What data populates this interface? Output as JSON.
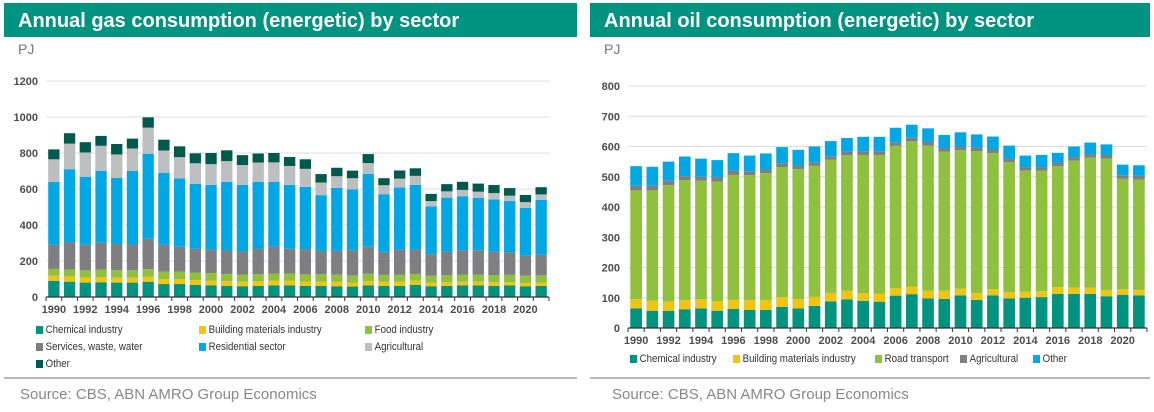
{
  "colors": {
    "title_bg": "#00937f",
    "chemical": "#00937f",
    "building": "#f1c40f",
    "food": "#8fc13e",
    "services": "#7f7f82",
    "residential": "#00a7e5",
    "agricultural": "#bdbec0",
    "other_gas": "#005a4b",
    "road": "#8fc13e",
    "agricultural_oil": "#7f7f82",
    "other_oil": "#00a7e5"
  },
  "chart_data": [
    {
      "type": "bar",
      "stacked": true,
      "title": "Annual gas consumption (energetic) by sector",
      "ylabel": "PJ",
      "xlabel": "",
      "ylim": [
        0,
        1200
      ],
      "yticks": [
        0,
        200,
        400,
        600,
        800,
        1000,
        1200
      ],
      "grid": true,
      "legend_position": "bottom",
      "x": [
        1990,
        1991,
        1992,
        1993,
        1994,
        1995,
        1996,
        1997,
        1998,
        1999,
        2000,
        2001,
        2002,
        2003,
        2004,
        2005,
        2006,
        2007,
        2008,
        2009,
        2010,
        2011,
        2012,
        2013,
        2014,
        2015,
        2016,
        2017,
        2018,
        2019,
        2020,
        2021
      ],
      "xtick_labels": [
        "1990",
        "1992",
        "1994",
        "1996",
        "1998",
        "2000",
        "2002",
        "2004",
        "2006",
        "2008",
        "2010",
        "2012",
        "2014",
        "2016",
        "2018",
        "2020"
      ],
      "series": [
        {
          "name": "Chemical industry",
          "color_key": "chemical",
          "values": [
            90,
            85,
            80,
            82,
            80,
            80,
            85,
            72,
            72,
            68,
            65,
            62,
            60,
            62,
            65,
            65,
            62,
            62,
            60,
            58,
            65,
            62,
            62,
            68,
            60,
            62,
            65,
            65,
            62,
            65,
            60,
            62
          ]
        },
        {
          "name": "Building materials industry",
          "color_key": "building",
          "values": [
            28,
            28,
            28,
            28,
            27,
            27,
            27,
            27,
            27,
            26,
            26,
            26,
            25,
            25,
            25,
            25,
            24,
            24,
            24,
            22,
            24,
            23,
            23,
            22,
            20,
            20,
            20,
            20,
            20,
            18,
            18,
            18
          ]
        },
        {
          "name": "Food industry",
          "color_key": "food",
          "values": [
            38,
            40,
            40,
            42,
            42,
            42,
            42,
            42,
            42,
            42,
            42,
            40,
            40,
            40,
            40,
            40,
            40,
            40,
            40,
            40,
            40,
            38,
            38,
            38,
            38,
            40,
            40,
            40,
            40,
            40,
            40,
            40
          ]
        },
        {
          "name": "Services, waste, water",
          "color_key": "services",
          "values": [
            134,
            152,
            142,
            150,
            145,
            143,
            170,
            150,
            138,
            132,
            130,
            130,
            128,
            140,
            150,
            138,
            140,
            130,
            132,
            140,
            150,
            128,
            140,
            135,
            120,
            130,
            135,
            135,
            130,
            125,
            112,
            115
          ]
        },
        {
          "name": "Residential sector",
          "color_key": "residential",
          "values": [
            350,
            405,
            378,
            398,
            368,
            408,
            472,
            398,
            380,
            360,
            360,
            382,
            370,
            372,
            360,
            355,
            346,
            310,
            350,
            338,
            405,
            320,
            345,
            360,
            265,
            300,
            300,
            290,
            290,
            285,
            265,
            305
          ]
        },
        {
          "name": "Agricultural",
          "color_key": "agricultural",
          "values": [
            125,
            142,
            135,
            140,
            130,
            125,
            145,
            125,
            118,
            115,
            115,
            115,
            110,
            108,
            108,
            105,
            100,
            70,
            65,
            62,
            60,
            50,
            50,
            50,
            30,
            35,
            35,
            35,
            35,
            30,
            32,
            30
          ]
        },
        {
          "name": "Other",
          "color_key": "other_gas",
          "values": [
            55,
            58,
            57,
            55,
            58,
            55,
            57,
            60,
            60,
            55,
            62,
            60,
            55,
            50,
            52,
            50,
            53,
            47,
            47,
            42,
            50,
            39,
            45,
            42,
            40,
            40,
            45,
            45,
            45,
            42,
            40,
            40
          ]
        }
      ]
    },
    {
      "type": "bar",
      "stacked": true,
      "title": "Annual oil consumption (energetic) by sector",
      "ylabel": "PJ",
      "xlabel": "",
      "ylim": [
        0,
        800
      ],
      "yticks": [
        0,
        100,
        200,
        300,
        400,
        500,
        600,
        700,
        800
      ],
      "grid": true,
      "legend_position": "bottom",
      "x": [
        1990,
        1991,
        1992,
        1993,
        1994,
        1995,
        1996,
        1997,
        1998,
        1999,
        2000,
        2001,
        2002,
        2003,
        2004,
        2005,
        2006,
        2007,
        2008,
        2009,
        2010,
        2011,
        2012,
        2013,
        2014,
        2015,
        2016,
        2017,
        2018,
        2019,
        2020,
        2021
      ],
      "xtick_labels": [
        "1990",
        "1992",
        "1994",
        "1996",
        "1998",
        "2000",
        "2002",
        "2004",
        "2006",
        "2008",
        "2010",
        "2012",
        "2014",
        "2016",
        "2018",
        "2020"
      ],
      "series": [
        {
          "name": "Chemical industry",
          "color_key": "chemical",
          "values": [
            65,
            57,
            57,
            62,
            65,
            57,
            63,
            60,
            60,
            70,
            65,
            73,
            88,
            95,
            90,
            87,
            107,
            112,
            98,
            96,
            108,
            93,
            108,
            98,
            100,
            102,
            113,
            113,
            113,
            105,
            110,
            108
          ]
        },
        {
          "name": "Building materials industry",
          "color_key": "building",
          "values": [
            30,
            33,
            30,
            30,
            30,
            32,
            30,
            32,
            32,
            32,
            30,
            30,
            28,
            28,
            25,
            27,
            25,
            25,
            25,
            27,
            22,
            22,
            20,
            20,
            20,
            20,
            22,
            20,
            20,
            20,
            18,
            18
          ]
        },
        {
          "name": "Road transport",
          "color_key": "road",
          "values": [
            360,
            365,
            385,
            397,
            392,
            395,
            413,
            413,
            420,
            430,
            430,
            433,
            440,
            448,
            457,
            458,
            470,
            480,
            480,
            460,
            458,
            470,
            450,
            430,
            400,
            398,
            400,
            420,
            430,
            435,
            365,
            365
          ]
        },
        {
          "name": "Agricultural",
          "color_key": "agricultural_oil",
          "values": [
            15,
            15,
            15,
            13,
            13,
            15,
            15,
            13,
            12,
            13,
            12,
            12,
            12,
            12,
            12,
            12,
            12,
            12,
            12,
            12,
            12,
            12,
            12,
            12,
            12,
            12,
            12,
            12,
            12,
            12,
            12,
            12
          ]
        },
        {
          "name": "Other",
          "color_key": "other_oil",
          "values": [
            65,
            63,
            63,
            65,
            60,
            56,
            57,
            52,
            53,
            53,
            52,
            52,
            50,
            45,
            48,
            48,
            48,
            43,
            45,
            43,
            47,
            43,
            43,
            43,
            38,
            40,
            32,
            35,
            38,
            35,
            35,
            35
          ]
        }
      ]
    }
  ],
  "gas_panel": {
    "title": "Annual gas consumption (energetic) by sector",
    "unit": "PJ",
    "legend": [
      "Chemical industry",
      "Building materials industry",
      "Food industry",
      "Services, waste, water",
      "Residential sector",
      "Agricultural",
      "Other"
    ],
    "source": "Source: CBS, ABN AMRO Group Economics"
  },
  "oil_panel": {
    "title": "Annual oil consumption (energetic) by sector",
    "unit": "PJ",
    "legend": [
      "Chemical industry",
      "Building materials industry",
      "Road transport",
      "Agricultural",
      "Other"
    ],
    "source": "Source: CBS, ABN AMRO Group Economics"
  }
}
